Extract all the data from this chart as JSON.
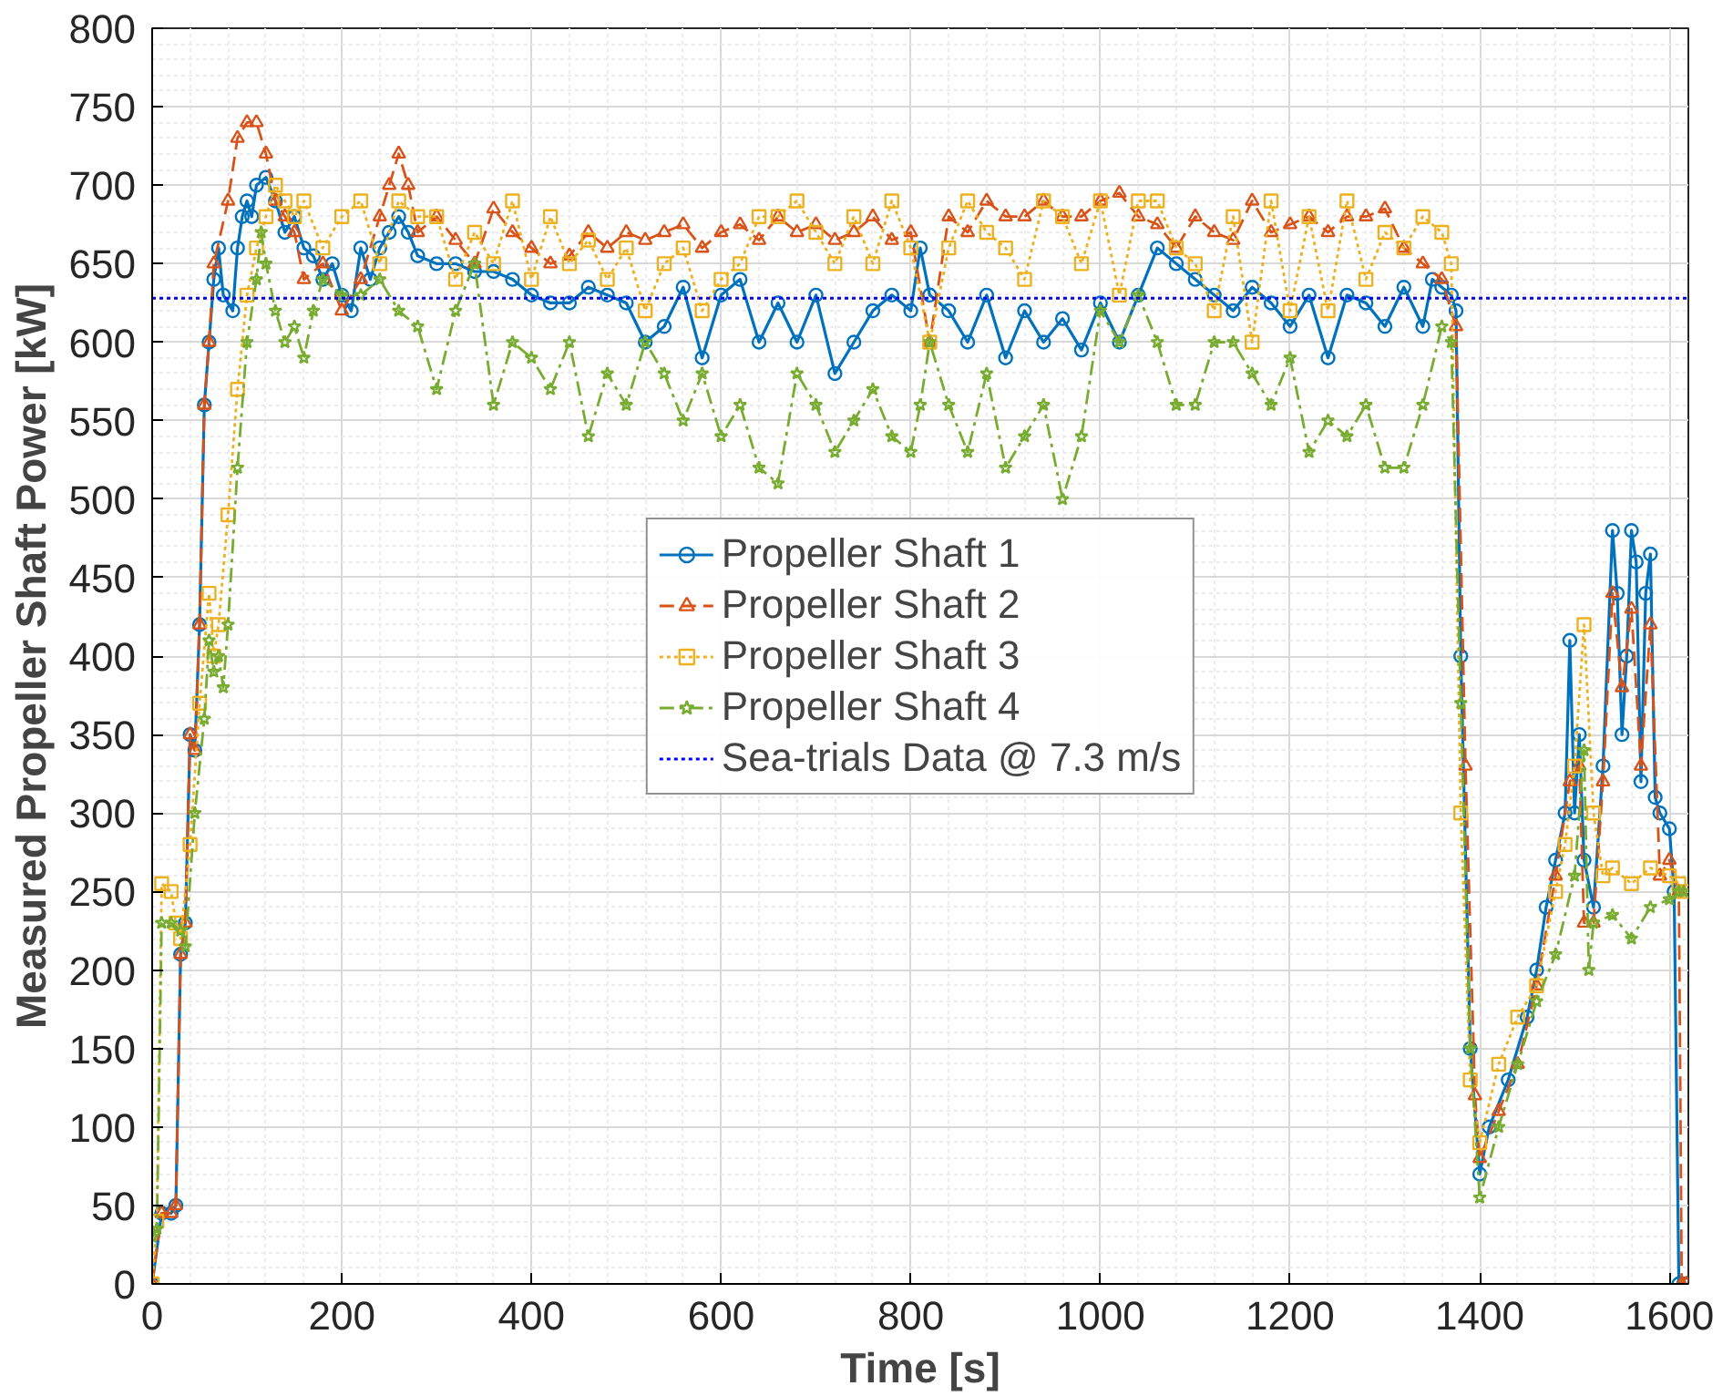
{
  "chart_data": {
    "type": "line",
    "xlabel": "Time [s]",
    "ylabel": "Measured Propeller Shaft Power [kW]",
    "xlim": [
      0,
      1620
    ],
    "ylim": [
      0,
      800
    ],
    "xticks": [
      0,
      200,
      400,
      600,
      800,
      1000,
      1200,
      1400,
      1600
    ],
    "yticks": [
      0,
      50,
      100,
      150,
      200,
      250,
      300,
      350,
      400,
      450,
      500,
      550,
      600,
      650,
      700,
      750,
      800
    ],
    "grid": true,
    "legend": "center",
    "series": [
      {
        "name": "Propeller Shaft 1",
        "color": "#0072bd",
        "marker": "circle",
        "line_style": "solid",
        "x": [
          0,
          10,
          20,
          25,
          30,
          35,
          40,
          45,
          50,
          55,
          60,
          65,
          70,
          75,
          85,
          90,
          95,
          100,
          105,
          110,
          120,
          130,
          140,
          150,
          160,
          170,
          180,
          190,
          200,
          210,
          220,
          230,
          240,
          250,
          260,
          270,
          280,
          300,
          320,
          340,
          360,
          380,
          400,
          420,
          440,
          460,
          480,
          500,
          520,
          540,
          560,
          580,
          600,
          620,
          640,
          660,
          680,
          700,
          720,
          740,
          760,
          780,
          800,
          810,
          820,
          840,
          860,
          880,
          900,
          920,
          940,
          960,
          980,
          1000,
          1020,
          1040,
          1060,
          1080,
          1100,
          1120,
          1140,
          1160,
          1180,
          1200,
          1220,
          1240,
          1260,
          1280,
          1300,
          1320,
          1340,
          1350,
          1360,
          1370,
          1375,
          1380,
          1390,
          1400,
          1410,
          1430,
          1450,
          1460,
          1470,
          1480,
          1490,
          1495,
          1500,
          1505,
          1510,
          1520,
          1530,
          1540,
          1545,
          1550,
          1555,
          1560,
          1565,
          1570,
          1575,
          1580,
          1585,
          1590,
          1600,
          1605,
          1610,
          1615
        ],
        "values": [
          0,
          45,
          45,
          50,
          210,
          230,
          350,
          340,
          420,
          560,
          600,
          640,
          660,
          630,
          620,
          660,
          680,
          690,
          680,
          700,
          705,
          690,
          670,
          680,
          660,
          655,
          640,
          650,
          630,
          620,
          660,
          640,
          660,
          670,
          680,
          670,
          655,
          650,
          650,
          645,
          645,
          640,
          630,
          625,
          625,
          635,
          630,
          625,
          600,
          610,
          635,
          590,
          630,
          640,
          600,
          625,
          600,
          630,
          580,
          600,
          620,
          630,
          620,
          660,
          630,
          620,
          600,
          630,
          590,
          620,
          600,
          615,
          595,
          625,
          600,
          630,
          660,
          650,
          640,
          630,
          620,
          635,
          625,
          610,
          630,
          590,
          630,
          625,
          610,
          635,
          610,
          640,
          635,
          630,
          620,
          400,
          150,
          70,
          100,
          130,
          170,
          200,
          240,
          270,
          300,
          410,
          300,
          350,
          270,
          240,
          330,
          480,
          440,
          350,
          400,
          480,
          460,
          320,
          440,
          465,
          310,
          300,
          290,
          250,
          0,
          0
        ]
      },
      {
        "name": "Propeller Shaft 2",
        "color": "#d95319",
        "marker": "triangle",
        "line_style": "dashed",
        "x": [
          0,
          10,
          20,
          25,
          30,
          35,
          40,
          45,
          50,
          55,
          60,
          65,
          80,
          90,
          100,
          110,
          120,
          130,
          140,
          150,
          160,
          180,
          200,
          220,
          240,
          250,
          260,
          270,
          280,
          300,
          320,
          340,
          360,
          380,
          400,
          420,
          440,
          460,
          480,
          500,
          520,
          540,
          560,
          580,
          600,
          620,
          640,
          660,
          680,
          700,
          720,
          740,
          760,
          780,
          800,
          820,
          840,
          860,
          880,
          900,
          920,
          940,
          960,
          980,
          1000,
          1020,
          1040,
          1060,
          1080,
          1100,
          1120,
          1140,
          1160,
          1180,
          1200,
          1220,
          1240,
          1260,
          1280,
          1300,
          1320,
          1340,
          1360,
          1375,
          1385,
          1395,
          1400,
          1420,
          1440,
          1460,
          1480,
          1495,
          1505,
          1510,
          1520,
          1530,
          1540,
          1550,
          1560,
          1570,
          1580,
          1590,
          1600,
          1610,
          1613,
          1618
        ],
        "values": [
          0,
          45,
          45,
          50,
          210,
          230,
          350,
          340,
          420,
          560,
          600,
          650,
          690,
          730,
          740,
          740,
          720,
          690,
          680,
          670,
          640,
          650,
          620,
          640,
          680,
          700,
          720,
          700,
          670,
          680,
          665,
          650,
          685,
          670,
          660,
          650,
          655,
          670,
          660,
          670,
          665,
          670,
          675,
          660,
          670,
          675,
          665,
          680,
          670,
          675,
          665,
          670,
          680,
          665,
          670,
          600,
          680,
          670,
          690,
          680,
          680,
          690,
          680,
          680,
          690,
          695,
          680,
          675,
          660,
          680,
          670,
          665,
          690,
          670,
          675,
          680,
          670,
          680,
          680,
          685,
          660,
          650,
          640,
          610,
          330,
          120,
          80,
          110,
          140,
          190,
          260,
          320,
          330,
          230,
          230,
          320,
          440,
          380,
          430,
          330,
          420,
          260,
          270,
          250,
          0,
          0
        ]
      },
      {
        "name": "Propeller Shaft 3",
        "color": "#edb120",
        "marker": "square",
        "line_style": "dotted",
        "x": [
          0,
          5,
          10,
          20,
          25,
          30,
          40,
          50,
          60,
          65,
          70,
          80,
          90,
          100,
          110,
          120,
          130,
          140,
          150,
          160,
          180,
          200,
          220,
          240,
          260,
          280,
          300,
          320,
          340,
          360,
          380,
          400,
          420,
          440,
          460,
          480,
          500,
          520,
          540,
          560,
          580,
          600,
          620,
          640,
          660,
          680,
          700,
          720,
          740,
          760,
          780,
          800,
          820,
          840,
          860,
          880,
          900,
          920,
          940,
          960,
          980,
          1000,
          1020,
          1040,
          1060,
          1080,
          1100,
          1120,
          1140,
          1160,
          1180,
          1200,
          1220,
          1240,
          1260,
          1280,
          1300,
          1320,
          1340,
          1360,
          1370,
          1380,
          1390,
          1400,
          1420,
          1440,
          1460,
          1480,
          1490,
          1500,
          1510,
          1520,
          1530,
          1540,
          1560,
          1580,
          1600,
          1610,
          1615
        ],
        "values": [
          0,
          40,
          255,
          250,
          230,
          220,
          280,
          370,
          440,
          400,
          420,
          490,
          570,
          630,
          660,
          680,
          700,
          690,
          680,
          690,
          660,
          680,
          690,
          650,
          690,
          680,
          680,
          640,
          670,
          650,
          690,
          640,
          680,
          650,
          665,
          640,
          660,
          620,
          650,
          660,
          620,
          640,
          650,
          680,
          680,
          690,
          670,
          650,
          680,
          650,
          690,
          660,
          600,
          660,
          690,
          670,
          660,
          640,
          690,
          680,
          650,
          690,
          630,
          690,
          690,
          660,
          650,
          620,
          680,
          600,
          690,
          620,
          680,
          620,
          690,
          640,
          670,
          660,
          680,
          670,
          650,
          300,
          130,
          90,
          140,
          170,
          190,
          250,
          280,
          330,
          420,
          300,
          260,
          265,
          255,
          265,
          260,
          255,
          250
        ]
      },
      {
        "name": "Propeller Shaft 4",
        "color": "#77ac30",
        "marker": "star",
        "line_style": "dashdot",
        "x": [
          0,
          5,
          10,
          20,
          30,
          35,
          45,
          55,
          60,
          65,
          70,
          75,
          80,
          90,
          100,
          110,
          115,
          120,
          130,
          140,
          150,
          160,
          170,
          180,
          200,
          220,
          240,
          260,
          280,
          300,
          320,
          340,
          360,
          380,
          400,
          420,
          440,
          460,
          480,
          500,
          520,
          540,
          560,
          580,
          600,
          620,
          640,
          660,
          680,
          700,
          720,
          740,
          760,
          780,
          800,
          810,
          820,
          840,
          860,
          880,
          900,
          920,
          940,
          960,
          980,
          1000,
          1020,
          1040,
          1060,
          1080,
          1100,
          1120,
          1140,
          1160,
          1180,
          1200,
          1220,
          1240,
          1260,
          1280,
          1300,
          1320,
          1340,
          1360,
          1370,
          1380,
          1390,
          1400,
          1420,
          1440,
          1460,
          1480,
          1500,
          1510,
          1515,
          1520,
          1540,
          1560,
          1580,
          1600,
          1610,
          1615
        ],
        "values": [
          30,
          35,
          230,
          230,
          225,
          215,
          300,
          360,
          410,
          390,
          400,
          380,
          420,
          520,
          600,
          640,
          670,
          650,
          620,
          600,
          610,
          590,
          620,
          640,
          630,
          630,
          640,
          620,
          610,
          570,
          620,
          650,
          560,
          600,
          590,
          570,
          600,
          540,
          580,
          560,
          600,
          580,
          550,
          580,
          540,
          560,
          520,
          510,
          580,
          560,
          530,
          550,
          570,
          540,
          530,
          560,
          600,
          560,
          530,
          580,
          520,
          540,
          560,
          500,
          540,
          620,
          600,
          630,
          600,
          560,
          560,
          600,
          600,
          580,
          560,
          590,
          530,
          550,
          540,
          560,
          520,
          520,
          560,
          610,
          600,
          370,
          150,
          55,
          100,
          140,
          180,
          210,
          260,
          340,
          200,
          230,
          235,
          220,
          240,
          245,
          250,
          250
        ]
      },
      {
        "name": "Sea-trials Data @ 7.3 m/s",
        "color": "#0000ff",
        "marker": "none",
        "line_style": "dotted",
        "x": [
          0,
          1620
        ],
        "values": [
          628,
          628
        ]
      }
    ]
  }
}
